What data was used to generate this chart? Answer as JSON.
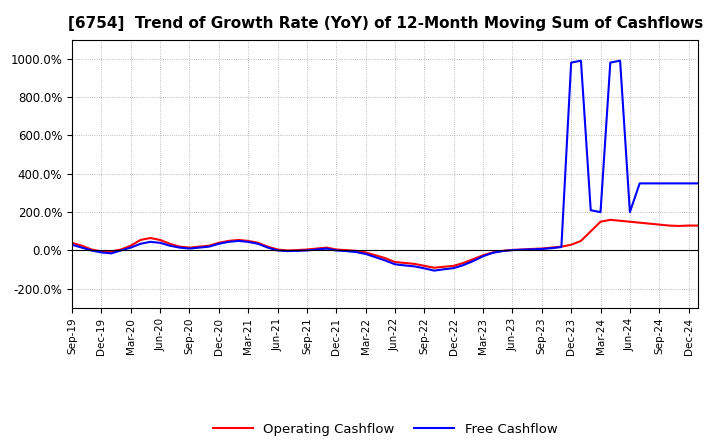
{
  "title": "[6754]  Trend of Growth Rate (YoY) of 12-Month Moving Sum of Cashflows",
  "title_fontsize": 11,
  "ylim": [
    -300,
    1100
  ],
  "yticks": [
    -200,
    0,
    200,
    400,
    600,
    800,
    1000
  ],
  "ytick_labels": [
    "-200.0%",
    "0.0%",
    "200.0%",
    "400.0%",
    "600.0%",
    "800.0%",
    "1000.0%"
  ],
  "legend_labels": [
    "Operating Cashflow",
    "Free Cashflow"
  ],
  "legend_colors": [
    "#ff0000",
    "#0000ff"
  ],
  "operating_cashflow_x": [
    0,
    1,
    2,
    3,
    4,
    5,
    6,
    7,
    8,
    9,
    10,
    11,
    12,
    13,
    14,
    15,
    16,
    17,
    18,
    19,
    20,
    21,
    22,
    23,
    24,
    25,
    26,
    27,
    28,
    29,
    30,
    31,
    32,
    33,
    34,
    35,
    36,
    37,
    38,
    39,
    40,
    41,
    42,
    43,
    44,
    45,
    46,
    47,
    48,
    49,
    50,
    51,
    52,
    53,
    54,
    55,
    56,
    57,
    58,
    59,
    60,
    61,
    62,
    63,
    64
  ],
  "operating_cashflow_y": [
    40,
    25,
    5,
    -5,
    -5,
    5,
    25,
    55,
    65,
    55,
    35,
    20,
    15,
    20,
    25,
    40,
    50,
    55,
    50,
    40,
    20,
    5,
    0,
    2,
    5,
    10,
    15,
    5,
    2,
    -2,
    -10,
    -25,
    -40,
    -60,
    -65,
    -70,
    -80,
    -90,
    -85,
    -80,
    -65,
    -45,
    -25,
    -10,
    -2,
    3,
    5,
    8,
    10,
    15,
    20,
    30,
    50,
    100,
    150,
    160,
    155,
    150,
    145,
    140,
    135,
    130,
    128,
    130,
    130
  ],
  "free_cashflow_x": [
    0,
    1,
    2,
    3,
    4,
    5,
    6,
    7,
    8,
    9,
    10,
    11,
    12,
    13,
    14,
    15,
    16,
    17,
    18,
    19,
    20,
    21,
    22,
    23,
    24,
    25,
    26,
    27,
    28,
    29,
    30,
    31,
    32,
    33,
    34,
    35,
    36,
    37,
    38,
    39,
    40,
    41,
    42,
    43,
    44,
    45,
    46,
    47,
    48,
    49,
    50,
    51,
    52,
    53,
    54,
    55,
    56,
    57,
    58,
    59,
    60,
    61,
    62,
    63,
    64
  ],
  "free_cashflow_y": [
    30,
    15,
    0,
    -10,
    -15,
    0,
    15,
    35,
    45,
    40,
    25,
    15,
    10,
    15,
    20,
    35,
    45,
    50,
    45,
    35,
    15,
    0,
    -3,
    -2,
    0,
    5,
    10,
    0,
    -3,
    -8,
    -18,
    -35,
    -52,
    -72,
    -78,
    -83,
    -93,
    -105,
    -98,
    -92,
    -76,
    -55,
    -30,
    -12,
    -3,
    2,
    4,
    6,
    8,
    12,
    18,
    980,
    990,
    210,
    200,
    980,
    990,
    200,
    350,
    350,
    350,
    350,
    350,
    350,
    350
  ],
  "xtick_positions": [
    0,
    3,
    6,
    9,
    12,
    15,
    18,
    21,
    24,
    27,
    30,
    33,
    36,
    39,
    42,
    45,
    48,
    51,
    54,
    57,
    60,
    63
  ],
  "xtick_labels": [
    "Sep-19",
    "Dec-19",
    "Mar-20",
    "Jun-20",
    "Sep-20",
    "Dec-20",
    "Mar-21",
    "Jun-21",
    "Sep-21",
    "Dec-21",
    "Mar-22",
    "Jun-22",
    "Sep-22",
    "Dec-22",
    "Mar-23",
    "Jun-23",
    "Sep-23",
    "Dec-23",
    "Mar-24",
    "Jun-24",
    "Sep-24",
    "Dec-24"
  ],
  "grid_color": "#aaaaaa",
  "grid_style": "dotted",
  "line_width": 1.5,
  "background_color": "#ffffff",
  "plot_background": "#ffffff"
}
